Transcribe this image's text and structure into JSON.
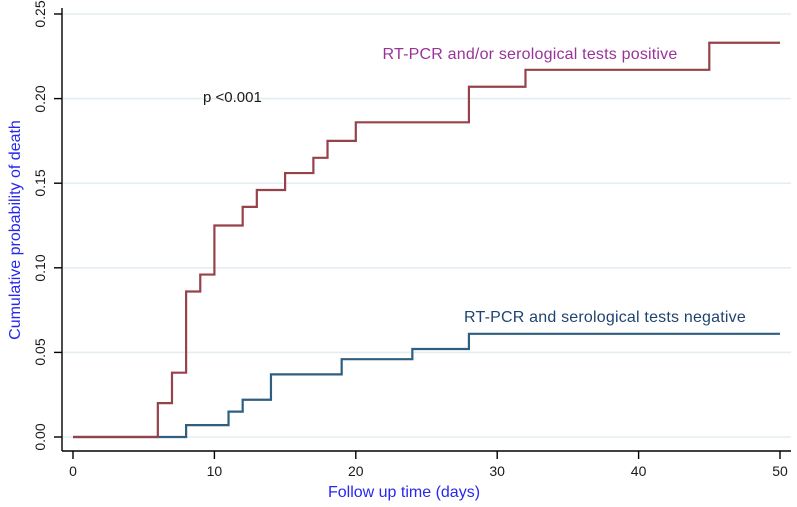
{
  "figure": {
    "p_value": "p <0.001"
  },
  "chart_data": {
    "type": "line",
    "subtype": "kaplan-meier-step",
    "title": "",
    "xlabel": "Follow up time (days)",
    "ylabel": "Cumulative probability of death",
    "xlim": [
      0,
      50
    ],
    "ylim": [
      0.0,
      0.25
    ],
    "xticks": [
      0,
      10,
      20,
      30,
      40,
      50
    ],
    "ytick_labels": [
      "0.00",
      "0.05",
      "0.10",
      "0.15",
      "0.20",
      "0.25"
    ],
    "ytick_values": [
      0.0,
      0.05,
      0.1,
      0.15,
      0.2,
      0.25
    ],
    "grid": "horizontal",
    "legend_position": "inline-text-labels",
    "annotations": [
      {
        "text": "p <0.001",
        "x": 11.8,
        "y": 0.2
      }
    ],
    "series": [
      {
        "name": "RT-PCR and serological tests negative",
        "line_color": "#2e5e80",
        "label_color": "#1f446e",
        "start": [
          0,
          0.0
        ],
        "steps": [
          [
            8,
            0.007
          ],
          [
            11,
            0.015
          ],
          [
            12,
            0.022
          ],
          [
            14,
            0.037
          ],
          [
            19,
            0.046
          ],
          [
            24,
            0.052
          ],
          [
            28,
            0.061
          ]
        ],
        "end_x": 50
      },
      {
        "name": "RT-PCR and/or serological tests positive",
        "line_color": "#96424a",
        "label_color": "#993399",
        "start": [
          0,
          0.0
        ],
        "steps": [
          [
            6,
            0.02
          ],
          [
            7,
            0.038
          ],
          [
            8,
            0.086
          ],
          [
            9,
            0.096
          ],
          [
            10,
            0.125
          ],
          [
            12,
            0.136
          ],
          [
            13,
            0.146
          ],
          [
            15,
            0.156
          ],
          [
            17,
            0.165
          ],
          [
            18,
            0.175
          ],
          [
            20,
            0.186
          ],
          [
            28,
            0.207
          ],
          [
            32,
            0.217
          ],
          [
            45,
            0.233
          ]
        ],
        "end_x": 50
      }
    ],
    "axis_color": "#000000",
    "grid_color": "#e4eef2"
  }
}
